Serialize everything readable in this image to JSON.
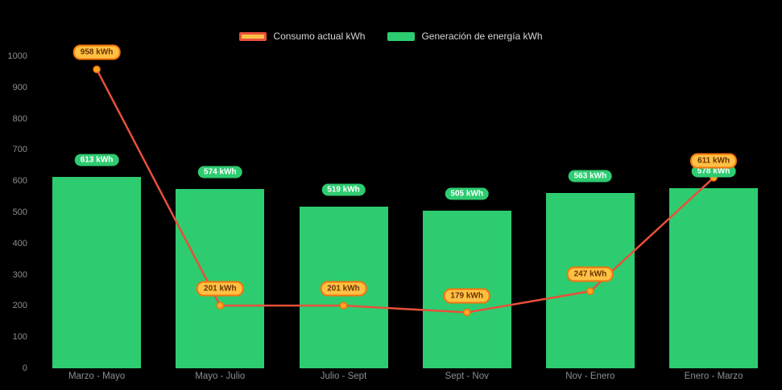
{
  "chart_data": {
    "type": "bar+line",
    "categories": [
      "Marzo - Mayo",
      "Mayo - Julio",
      "Julio - Sept",
      "Sept - Nov",
      "Nov - Enero",
      "Enero - Marzo"
    ],
    "series": [
      {
        "name": "Consumo actual kWh",
        "type": "line",
        "values": [
          958,
          201,
          201,
          179,
          247,
          611
        ],
        "labels": [
          "958 kWh",
          "201 kWh",
          "201 kWh",
          "179 kWh",
          "247 kWh",
          "611 kWh"
        ]
      },
      {
        "name": "Generación de energía kWh",
        "type": "bar",
        "values": [
          613,
          574,
          519,
          505,
          563,
          578
        ],
        "labels": [
          "613 kWh",
          "574 kWh",
          "519 kWh",
          "505 kWh",
          "563 kWh",
          "578 kWh"
        ]
      }
    ],
    "title": "",
    "xlabel": "",
    "ylabel": "",
    "ylim": [
      0,
      1000
    ],
    "yticks": [
      0,
      100,
      200,
      300,
      400,
      500,
      600,
      700,
      800,
      900,
      1000
    ],
    "grid": false,
    "legend_position": "top",
    "colors": {
      "background": "#000000",
      "bar": "#2ECC71",
      "line": "#E8503A",
      "point_fill": "#FFA726",
      "point_stroke": "#F2740B",
      "bar_label_bg": "#2ECC71",
      "bar_label_text": "#FFFFFF",
      "line_label_bg": "#FFC043",
      "line_label_border": "#F2740B",
      "line_label_text": "#6B3305",
      "axis_text": "#8E8E8E",
      "legend_text": "#D6D6D6"
    }
  }
}
